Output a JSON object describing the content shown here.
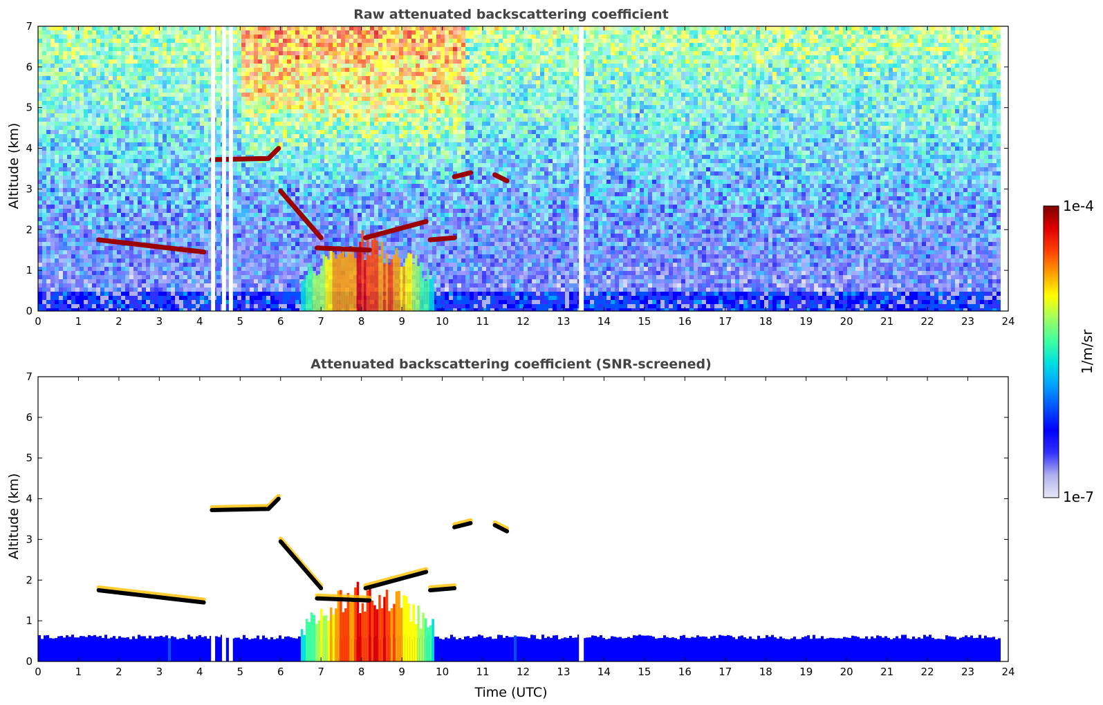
{
  "chart_data": [
    {
      "type": "heatmap",
      "title": "Raw attenuated backscattering coefficient",
      "xlabel": "",
      "ylabel": "Altitude (km)",
      "xlim": [
        0,
        24
      ],
      "ylim": [
        0,
        7
      ],
      "xticks": [
        "0",
        "1",
        "2",
        "3",
        "4",
        "5",
        "6",
        "7",
        "8",
        "9",
        "10",
        "11",
        "12",
        "13",
        "14",
        "15",
        "16",
        "17",
        "18",
        "19",
        "20",
        "21",
        "22",
        "23",
        "24"
      ],
      "yticks": [
        "0",
        "1",
        "2",
        "3",
        "4",
        "5",
        "6",
        "7"
      ],
      "grid": false,
      "data_gaps_utc": [
        [
          4.28,
          4.38
        ],
        [
          4.55,
          4.65
        ],
        [
          4.72,
          4.82
        ],
        [
          13.38,
          13.5
        ]
      ],
      "features": [
        {
          "kind": "cloud_layer",
          "t_start": 1.5,
          "t_end": 4.1,
          "alt_start_km": 1.75,
          "alt_end_km": 1.45
        },
        {
          "kind": "cloud_layer",
          "t_start": 4.3,
          "t_end": 5.7,
          "alt_start_km": 3.72,
          "alt_end_km": 3.75
        },
        {
          "kind": "cloud_layer",
          "t_start": 5.7,
          "t_end": 5.95,
          "alt_start_km": 3.75,
          "alt_end_km": 4.0
        },
        {
          "kind": "cloud_layer",
          "t_start": 6.0,
          "t_end": 7.0,
          "alt_start_km": 2.95,
          "alt_end_km": 1.8
        },
        {
          "kind": "cloud_layer",
          "t_start": 6.9,
          "t_end": 8.2,
          "alt_start_km": 1.55,
          "alt_end_km": 1.5
        },
        {
          "kind": "cloud_layer",
          "t_start": 8.1,
          "t_end": 9.6,
          "alt_start_km": 1.8,
          "alt_end_km": 2.2
        },
        {
          "kind": "cloud_layer",
          "t_start": 9.7,
          "t_end": 10.3,
          "alt_start_km": 1.75,
          "alt_end_km": 1.8
        },
        {
          "kind": "cloud_layer",
          "t_start": 10.3,
          "t_end": 10.7,
          "alt_start_km": 3.3,
          "alt_end_km": 3.4
        },
        {
          "kind": "cloud_layer",
          "t_start": 11.3,
          "t_end": 11.6,
          "alt_start_km": 3.35,
          "alt_end_km": 3.2
        },
        {
          "kind": "aerosol_column",
          "t_start": 6.5,
          "t_end": 9.8,
          "alt_top_km": 2.0
        }
      ],
      "boundary_layer_top_km": 0.55
    },
    {
      "type": "heatmap",
      "title": "Attenuated backscattering coefficient (SNR-screened)",
      "xlabel": "Time (UTC)",
      "ylabel": "Altitude (km)",
      "xlim": [
        0,
        24
      ],
      "ylim": [
        0,
        7
      ],
      "xticks": [
        "0",
        "1",
        "2",
        "3",
        "4",
        "5",
        "6",
        "7",
        "8",
        "9",
        "10",
        "11",
        "12",
        "13",
        "14",
        "15",
        "16",
        "17",
        "18",
        "19",
        "20",
        "21",
        "22",
        "23",
        "24"
      ],
      "yticks": [
        "0",
        "1",
        "2",
        "3",
        "4",
        "5",
        "6",
        "7"
      ],
      "grid": false,
      "boundary_layer_top_km": 0.6
    }
  ],
  "colorbar": {
    "label": "1/m/sr",
    "max_label": "1e-4",
    "min_label": "1e-7",
    "scale": "log",
    "range": [
      1e-07,
      0.0001
    ],
    "colormap": [
      "#e8e8f8",
      "#b0b0ec",
      "#3030ff",
      "#0000ff",
      "#0050ff",
      "#00a0ff",
      "#00e0e0",
      "#40ffa0",
      "#a0ff60",
      "#ffff00",
      "#ffa000",
      "#ff4000",
      "#e00000",
      "#800000"
    ]
  }
}
